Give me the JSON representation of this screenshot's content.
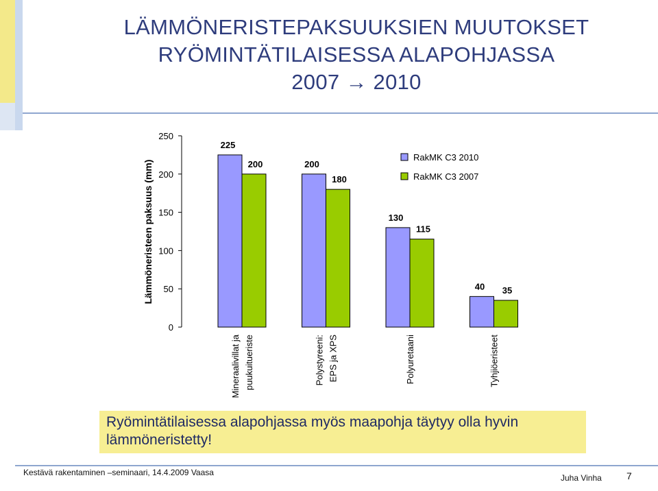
{
  "title": {
    "line1": "LÄMMÖNERISTEPAKSUUKSIEN MUUTOKSET",
    "line2": "RYÖMINTÄTILAISESSA ALAPOHJASSA",
    "line3": "2007 → 2010"
  },
  "note": "Ryömintätilaisessa alapohjassa myös maapohja täytyy olla hyvin lämmöneristetty!",
  "footer": {
    "left": "Kestävä rakentaminen –seminaari, 14.4.2009 Vaasa",
    "author": "Juha Vinha",
    "page": "7"
  },
  "colors": {
    "title": "#2e3c7c",
    "series_2010": "#9999ff",
    "series_2007": "#99cc00",
    "note_bg": "#f7ee93"
  },
  "chart_data": {
    "type": "bar",
    "ylabel": "Lämmöneristeen paksuus (mm)",
    "ylim": [
      0,
      250
    ],
    "yticks": [
      0,
      50,
      100,
      150,
      200,
      250
    ],
    "grid": false,
    "legend_position": "top-right",
    "categories": [
      [
        "Mineraalivillat ja",
        "puukuitueriste"
      ],
      [
        "Polystyreeni:",
        "EPS ja XPS"
      ],
      [
        "Polyuretaani"
      ],
      [
        "Tyhjiöeristeet"
      ]
    ],
    "series": [
      {
        "name": "RakMK C3 2010",
        "color": "#9999ff",
        "values": [
          225,
          200,
          130,
          40
        ]
      },
      {
        "name": "RakMK C3 2007",
        "color": "#99cc00",
        "values": [
          200,
          180,
          115,
          35
        ]
      }
    ]
  }
}
